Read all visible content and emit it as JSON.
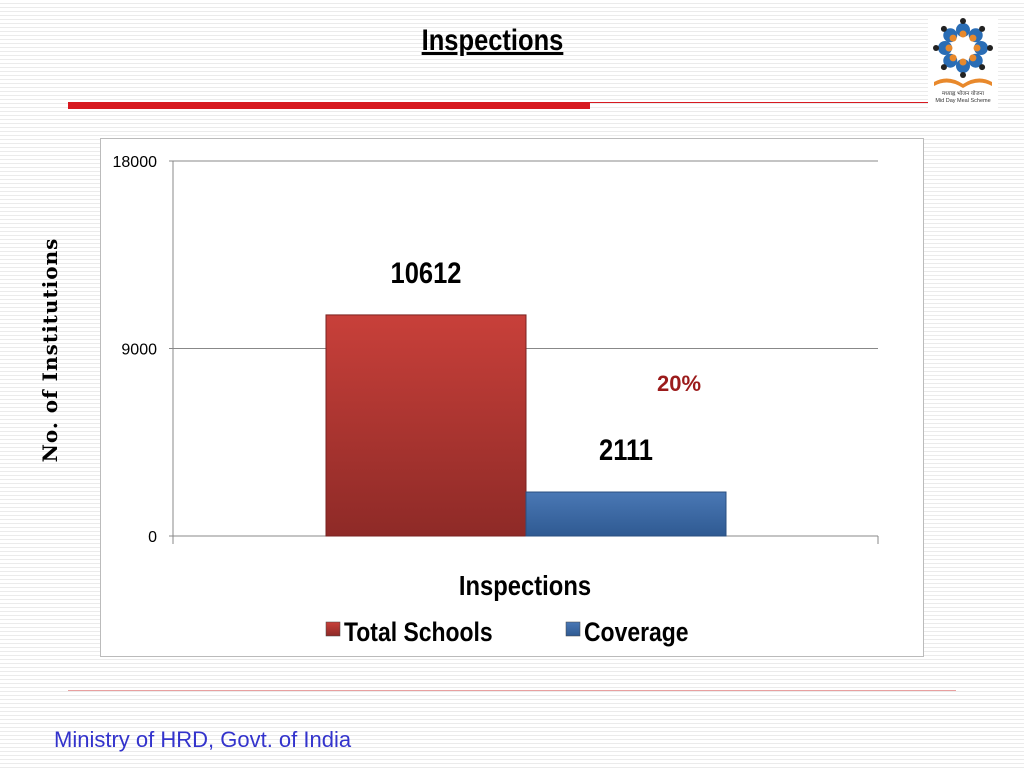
{
  "slide": {
    "title": "Inspections",
    "y_axis_label": "No. of Institutions",
    "footer": "Ministry of HRD, Govt. of India",
    "logo": {
      "lettering_hindi": "मध्याह्न भोजन योजना",
      "lettering_english": "Mid Day Meal Scheme"
    }
  },
  "chart_data": {
    "type": "bar",
    "categories": [
      "Inspections"
    ],
    "xlabel": "Inspections",
    "ylabel": "No. of Institutions",
    "ylim": [
      0,
      18000
    ],
    "yticks": [
      "0",
      "9000",
      "18000"
    ],
    "grid": true,
    "legend_placement": "bottom",
    "series": [
      {
        "name": "Total Schools",
        "values": [
          10612
        ],
        "data_label": "10612",
        "color": "#c0392b"
      },
      {
        "name": "Coverage",
        "values": [
          2111
        ],
        "data_label": "2111",
        "color": "#3d6aa5"
      }
    ],
    "annotation": "20%",
    "annotation_color": "#9b1b1b"
  }
}
